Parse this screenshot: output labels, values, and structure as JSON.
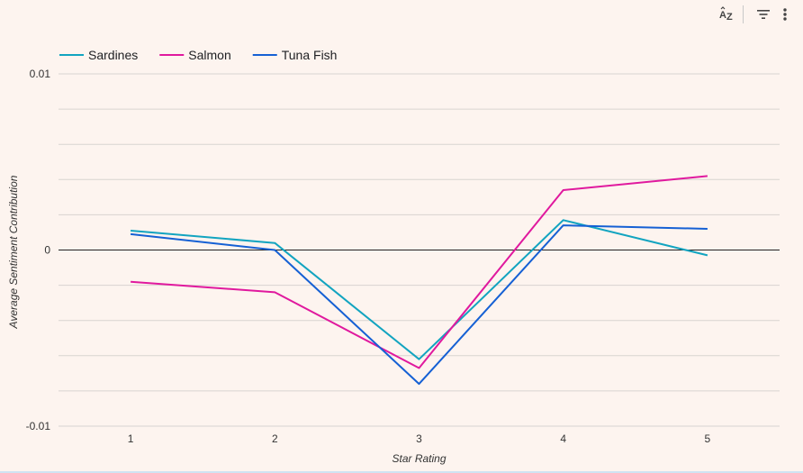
{
  "toolbar": {
    "sort_icon": "sort-az-icon",
    "filter_icon": "filter-icon",
    "more_icon": "more-vert-icon"
  },
  "chart_data": {
    "type": "line",
    "categories": [
      "1",
      "2",
      "3",
      "4",
      "5"
    ],
    "series": [
      {
        "name": "Sardines",
        "color": "#12a4c0",
        "values": [
          0.0011,
          0.0004,
          -0.0062,
          0.0017,
          -0.0003
        ]
      },
      {
        "name": "Salmon",
        "color": "#e0199e",
        "values": [
          -0.0018,
          -0.0024,
          -0.0067,
          0.0034,
          0.0042
        ]
      },
      {
        "name": "Tuna Fish",
        "color": "#1560d4",
        "values": [
          0.0009,
          0.0,
          -0.0076,
          0.0014,
          0.0012
        ]
      }
    ],
    "ytick_labels": [
      "0.01",
      "0",
      "-0.01"
    ],
    "ytick_values": [
      0.01,
      0,
      -0.01
    ],
    "xlabel": "Star Rating",
    "ylabel": "Average Sentiment Contribution",
    "ylim": [
      -0.01,
      0.01
    ],
    "grid": true,
    "legend_position": "top-left"
  }
}
